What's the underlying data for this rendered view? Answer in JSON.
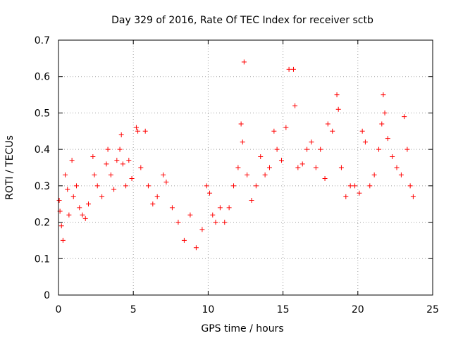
{
  "chart_data": {
    "type": "scatter",
    "title": "Day 329 of 2016, Rate Of TEC Index for receiver sctb",
    "xlabel": "GPS time / hours",
    "ylabel": "ROTI / TECUs",
    "xlim": [
      0,
      25
    ],
    "ylim": [
      0,
      0.7
    ],
    "xticks": [
      0,
      5,
      10,
      15,
      20,
      25
    ],
    "yticks": [
      0,
      0.1,
      0.2,
      0.3,
      0.4,
      0.5,
      0.6,
      0.7
    ],
    "xtick_labels": [
      "0",
      "5",
      "10",
      "15",
      "20",
      "25"
    ],
    "ytick_labels": [
      "0",
      "0.1",
      "0.2",
      "0.3",
      "0.4",
      "0.5",
      "0.6",
      "0.7"
    ],
    "grid": true,
    "marker": "+",
    "color": "#ff0000",
    "series": [
      {
        "name": "ROTI",
        "points": [
          [
            0.05,
            0.26
          ],
          [
            0.1,
            0.23
          ],
          [
            0.2,
            0.19
          ],
          [
            0.3,
            0.15
          ],
          [
            0.45,
            0.33
          ],
          [
            0.6,
            0.29
          ],
          [
            0.7,
            0.22
          ],
          [
            0.9,
            0.37
          ],
          [
            1.0,
            0.27
          ],
          [
            1.2,
            0.3
          ],
          [
            1.4,
            0.24
          ],
          [
            1.6,
            0.22
          ],
          [
            1.8,
            0.21
          ],
          [
            2.0,
            0.25
          ],
          [
            2.3,
            0.38
          ],
          [
            2.4,
            0.33
          ],
          [
            2.6,
            0.3
          ],
          [
            2.9,
            0.27
          ],
          [
            3.2,
            0.36
          ],
          [
            3.3,
            0.4
          ],
          [
            3.5,
            0.33
          ],
          [
            3.7,
            0.29
          ],
          [
            3.9,
            0.37
          ],
          [
            4.1,
            0.4
          ],
          [
            4.2,
            0.44
          ],
          [
            4.3,
            0.36
          ],
          [
            4.5,
            0.3
          ],
          [
            4.7,
            0.37
          ],
          [
            4.9,
            0.32
          ],
          [
            5.2,
            0.46
          ],
          [
            5.3,
            0.45
          ],
          [
            5.5,
            0.35
          ],
          [
            5.8,
            0.45
          ],
          [
            6.0,
            0.3
          ],
          [
            6.3,
            0.25
          ],
          [
            6.6,
            0.27
          ],
          [
            7.0,
            0.33
          ],
          [
            7.2,
            0.31
          ],
          [
            7.6,
            0.24
          ],
          [
            8.0,
            0.2
          ],
          [
            8.4,
            0.15
          ],
          [
            8.8,
            0.22
          ],
          [
            9.2,
            0.13
          ],
          [
            9.6,
            0.18
          ],
          [
            9.9,
            0.3
          ],
          [
            10.1,
            0.28
          ],
          [
            10.3,
            0.22
          ],
          [
            10.5,
            0.2
          ],
          [
            10.8,
            0.24
          ],
          [
            11.1,
            0.2
          ],
          [
            11.4,
            0.24
          ],
          [
            11.7,
            0.3
          ],
          [
            12.0,
            0.35
          ],
          [
            12.2,
            0.47
          ],
          [
            12.3,
            0.42
          ],
          [
            12.4,
            0.64
          ],
          [
            12.6,
            0.33
          ],
          [
            12.9,
            0.26
          ],
          [
            13.2,
            0.3
          ],
          [
            13.5,
            0.38
          ],
          [
            13.8,
            0.33
          ],
          [
            14.1,
            0.35
          ],
          [
            14.4,
            0.45
          ],
          [
            14.6,
            0.4
          ],
          [
            14.9,
            0.37
          ],
          [
            15.2,
            0.46
          ],
          [
            15.4,
            0.62
          ],
          [
            15.7,
            0.62
          ],
          [
            15.8,
            0.52
          ],
          [
            16.0,
            0.35
          ],
          [
            16.3,
            0.36
          ],
          [
            16.6,
            0.4
          ],
          [
            16.9,
            0.42
          ],
          [
            17.2,
            0.35
          ],
          [
            17.5,
            0.4
          ],
          [
            17.8,
            0.32
          ],
          [
            18.0,
            0.47
          ],
          [
            18.3,
            0.45
          ],
          [
            18.6,
            0.55
          ],
          [
            18.7,
            0.51
          ],
          [
            18.9,
            0.35
          ],
          [
            19.2,
            0.27
          ],
          [
            19.5,
            0.3
          ],
          [
            19.8,
            0.3
          ],
          [
            20.1,
            0.28
          ],
          [
            20.3,
            0.45
          ],
          [
            20.5,
            0.42
          ],
          [
            20.8,
            0.3
          ],
          [
            21.1,
            0.33
          ],
          [
            21.4,
            0.4
          ],
          [
            21.6,
            0.47
          ],
          [
            21.7,
            0.55
          ],
          [
            21.8,
            0.5
          ],
          [
            22.0,
            0.43
          ],
          [
            22.3,
            0.38
          ],
          [
            22.6,
            0.35
          ],
          [
            22.9,
            0.33
          ],
          [
            23.1,
            0.49
          ],
          [
            23.3,
            0.4
          ],
          [
            23.5,
            0.3
          ],
          [
            23.7,
            0.27
          ]
        ]
      }
    ]
  }
}
